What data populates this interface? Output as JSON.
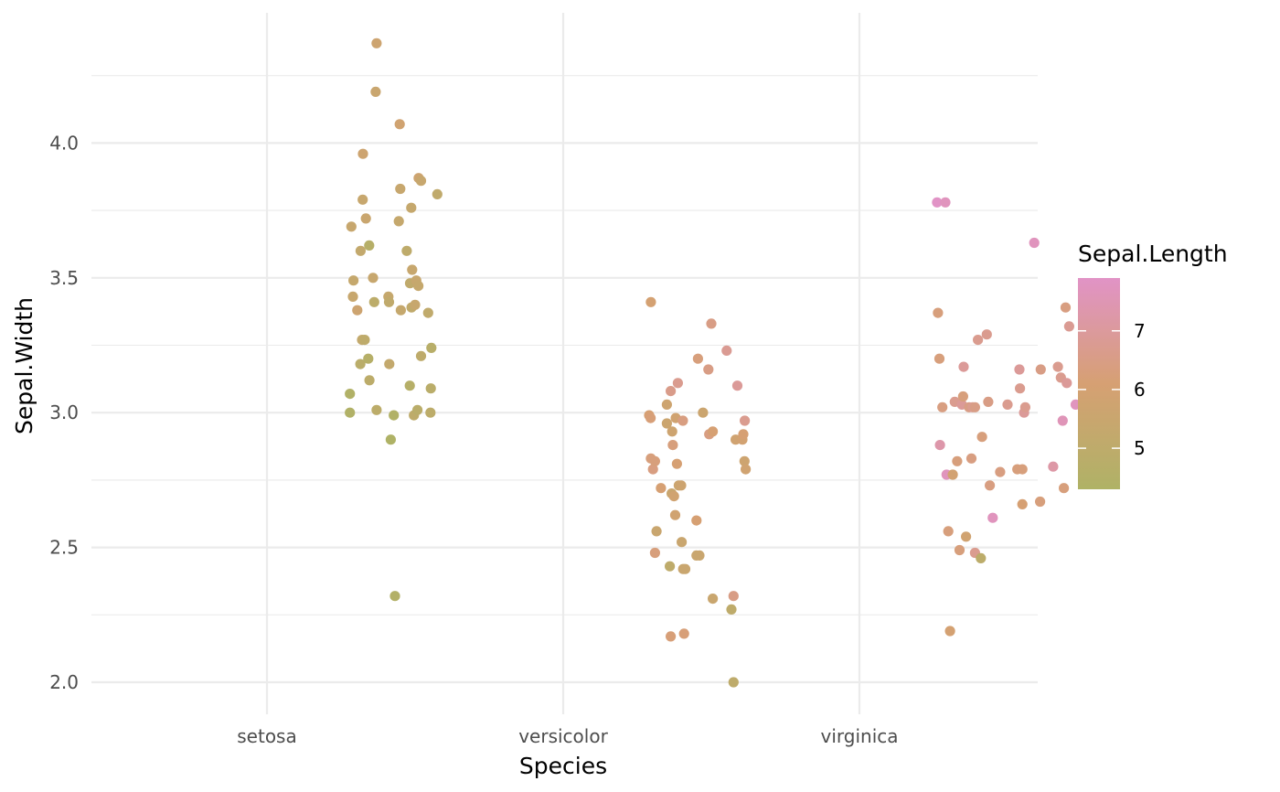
{
  "chart_data": {
    "type": "scatter",
    "subtype": "jitter",
    "title": "",
    "xlabel": "Species",
    "ylabel": "Sepal.Width",
    "categories": [
      "setosa",
      "versicolor",
      "virginica"
    ],
    "ylim": [
      1.88,
      4.48
    ],
    "yticks": [
      2.0,
      2.5,
      3.0,
      3.5,
      4.0
    ],
    "ytick_labels": [
      "2.0",
      "2.5",
      "3.0",
      "3.5",
      "4.0"
    ],
    "grid": true,
    "color_legend": {
      "title": "Sepal.Length",
      "placement": "right",
      "min": 4.3,
      "max": 7.9,
      "ticks": [
        5,
        6,
        7
      ],
      "tick_labels": [
        "5",
        "6",
        "7"
      ],
      "low_color": "#afb266",
      "mid_color": "#d6a073",
      "high_color": "#e193c6"
    },
    "series": [
      {
        "category": "setosa",
        "points": [
          {
            "x": 0.28,
            "y": 3.0,
            "c": 4.4
          },
          {
            "x": 0.28,
            "y": 3.07,
            "c": 4.4
          },
          {
            "x": 0.285,
            "y": 3.69,
            "c": 5.4
          },
          {
            "x": 0.29,
            "y": 3.43,
            "c": 5.4
          },
          {
            "x": 0.292,
            "y": 3.49,
            "c": 5.3
          },
          {
            "x": 0.305,
            "y": 3.38,
            "c": 5.7
          },
          {
            "x": 0.315,
            "y": 3.18,
            "c": 4.8
          },
          {
            "x": 0.316,
            "y": 3.6,
            "c": 5.2
          },
          {
            "x": 0.321,
            "y": 3.27,
            "c": 5.2
          },
          {
            "x": 0.323,
            "y": 3.79,
            "c": 5.4
          },
          {
            "x": 0.324,
            "y": 3.96,
            "c": 5.7
          },
          {
            "x": 0.33,
            "y": 3.27,
            "c": 5.0
          },
          {
            "x": 0.334,
            "y": 3.72,
            "c": 5.5
          },
          {
            "x": 0.342,
            "y": 3.2,
            "c": 4.6
          },
          {
            "x": 0.345,
            "y": 3.62,
            "c": 4.6
          },
          {
            "x": 0.346,
            "y": 3.12,
            "c": 4.9
          },
          {
            "x": 0.358,
            "y": 3.5,
            "c": 5.4
          },
          {
            "x": 0.362,
            "y": 3.41,
            "c": 4.9
          },
          {
            "x": 0.367,
            "y": 4.19,
            "c": 5.5
          },
          {
            "x": 0.37,
            "y": 4.37,
            "c": 5.7
          },
          {
            "x": 0.37,
            "y": 3.01,
            "c": 4.9
          },
          {
            "x": 0.41,
            "y": 3.43,
            "c": 5.3
          },
          {
            "x": 0.412,
            "y": 3.41,
            "c": 5.1
          },
          {
            "x": 0.413,
            "y": 3.18,
            "c": 5.2
          },
          {
            "x": 0.418,
            "y": 2.9,
            "c": 4.3
          },
          {
            "x": 0.428,
            "y": 2.99,
            "c": 4.4
          },
          {
            "x": 0.432,
            "y": 2.32,
            "c": 4.5
          },
          {
            "x": 0.445,
            "y": 3.71,
            "c": 5.3
          },
          {
            "x": 0.448,
            "y": 4.07,
            "c": 5.8
          },
          {
            "x": 0.45,
            "y": 3.83,
            "c": 5.4
          },
          {
            "x": 0.452,
            "y": 3.38,
            "c": 5.3
          },
          {
            "x": 0.472,
            "y": 3.6,
            "c": 5.0
          },
          {
            "x": 0.482,
            "y": 3.1,
            "c": 4.6
          },
          {
            "x": 0.483,
            "y": 3.48,
            "c": 5.1
          },
          {
            "x": 0.487,
            "y": 3.76,
            "c": 5.3
          },
          {
            "x": 0.488,
            "y": 3.39,
            "c": 5.1
          },
          {
            "x": 0.49,
            "y": 3.53,
            "c": 5.4
          },
          {
            "x": 0.496,
            "y": 2.99,
            "c": 5.0
          },
          {
            "x": 0.5,
            "y": 3.4,
            "c": 5.4
          },
          {
            "x": 0.504,
            "y": 3.49,
            "c": 5.4
          },
          {
            "x": 0.508,
            "y": 3.01,
            "c": 4.8
          },
          {
            "x": 0.511,
            "y": 3.47,
            "c": 5.3
          },
          {
            "x": 0.512,
            "y": 3.87,
            "c": 5.7
          },
          {
            "x": 0.52,
            "y": 3.86,
            "c": 5.4
          },
          {
            "x": 0.52,
            "y": 3.21,
            "c": 5.0
          },
          {
            "x": 0.544,
            "y": 3.37,
            "c": 5.1
          },
          {
            "x": 0.552,
            "y": 3.0,
            "c": 4.9
          },
          {
            "x": 0.553,
            "y": 3.09,
            "c": 4.8
          },
          {
            "x": 0.555,
            "y": 3.24,
            "c": 4.7
          },
          {
            "x": 0.575,
            "y": 3.81,
            "c": 5.1
          }
        ]
      },
      {
        "category": "versicolor",
        "points": [
          {
            "x": 1.29,
            "y": 2.99,
            "c": 6.1
          },
          {
            "x": 1.295,
            "y": 2.98,
            "c": 6.2
          },
          {
            "x": 1.296,
            "y": 3.41,
            "c": 6.0
          },
          {
            "x": 1.296,
            "y": 2.83,
            "c": 6.3
          },
          {
            "x": 1.303,
            "y": 2.79,
            "c": 6.4
          },
          {
            "x": 1.31,
            "y": 2.82,
            "c": 6.3
          },
          {
            "x": 1.31,
            "y": 2.48,
            "c": 6.3
          },
          {
            "x": 1.315,
            "y": 2.56,
            "c": 5.5
          },
          {
            "x": 1.33,
            "y": 2.72,
            "c": 6.1
          },
          {
            "x": 1.35,
            "y": 3.03,
            "c": 5.7
          },
          {
            "x": 1.35,
            "y": 2.96,
            "c": 5.6
          },
          {
            "x": 1.36,
            "y": 2.43,
            "c": 5.0
          },
          {
            "x": 1.363,
            "y": 3.08,
            "c": 6.6
          },
          {
            "x": 1.363,
            "y": 2.17,
            "c": 6.2
          },
          {
            "x": 1.366,
            "y": 2.7,
            "c": 5.5
          },
          {
            "x": 1.368,
            "y": 2.93,
            "c": 5.7
          },
          {
            "x": 1.37,
            "y": 2.88,
            "c": 6.3
          },
          {
            "x": 1.374,
            "y": 2.69,
            "c": 5.8
          },
          {
            "x": 1.378,
            "y": 2.62,
            "c": 5.8
          },
          {
            "x": 1.38,
            "y": 2.98,
            "c": 5.8
          },
          {
            "x": 1.384,
            "y": 2.81,
            "c": 6.1
          },
          {
            "x": 1.387,
            "y": 3.11,
            "c": 6.7
          },
          {
            "x": 1.39,
            "y": 2.73,
            "c": 5.6
          },
          {
            "x": 1.398,
            "y": 2.73,
            "c": 5.7
          },
          {
            "x": 1.4,
            "y": 2.52,
            "c": 5.5
          },
          {
            "x": 1.404,
            "y": 2.97,
            "c": 6.4
          },
          {
            "x": 1.405,
            "y": 2.42,
            "c": 5.5
          },
          {
            "x": 1.408,
            "y": 2.18,
            "c": 6.2
          },
          {
            "x": 1.412,
            "y": 2.42,
            "c": 5.5
          },
          {
            "x": 1.45,
            "y": 2.6,
            "c": 6.1
          },
          {
            "x": 1.45,
            "y": 2.47,
            "c": 5.5
          },
          {
            "x": 1.46,
            "y": 2.47,
            "c": 5.5
          },
          {
            "x": 1.455,
            "y": 3.2,
            "c": 6.3
          },
          {
            "x": 1.472,
            "y": 3.0,
            "c": 5.6
          },
          {
            "x": 1.49,
            "y": 3.16,
            "c": 6.5
          },
          {
            "x": 1.493,
            "y": 2.92,
            "c": 6.4
          },
          {
            "x": 1.5,
            "y": 3.33,
            "c": 6.5
          },
          {
            "x": 1.505,
            "y": 2.31,
            "c": 5.5
          },
          {
            "x": 1.505,
            "y": 2.93,
            "c": 6.1
          },
          {
            "x": 1.552,
            "y": 3.23,
            "c": 6.8
          },
          {
            "x": 1.568,
            "y": 2.27,
            "c": 5.0
          },
          {
            "x": 1.575,
            "y": 2.32,
            "c": 6.5
          },
          {
            "x": 1.575,
            "y": 2.0,
            "c": 5.0
          },
          {
            "x": 1.582,
            "y": 2.9,
            "c": 5.8
          },
          {
            "x": 1.588,
            "y": 3.1,
            "c": 6.9
          },
          {
            "x": 1.605,
            "y": 2.9,
            "c": 5.9
          },
          {
            "x": 1.608,
            "y": 2.92,
            "c": 6.1
          },
          {
            "x": 1.612,
            "y": 2.82,
            "c": 5.7
          },
          {
            "x": 1.613,
            "y": 2.97,
            "c": 6.7
          },
          {
            "x": 1.616,
            "y": 2.79,
            "c": 5.8
          }
        ]
      },
      {
        "category": "virginica",
        "points": [
          {
            "x": 2.262,
            "y": 3.78,
            "c": 7.9
          },
          {
            "x": 2.265,
            "y": 3.37,
            "c": 6.3
          },
          {
            "x": 2.27,
            "y": 3.2,
            "c": 6.3
          },
          {
            "x": 2.272,
            "y": 2.88,
            "c": 7.3
          },
          {
            "x": 2.28,
            "y": 3.02,
            "c": 6.4
          },
          {
            "x": 2.29,
            "y": 3.78,
            "c": 7.7
          },
          {
            "x": 2.294,
            "y": 2.77,
            "c": 7.7
          },
          {
            "x": 2.3,
            "y": 2.56,
            "c": 6.3
          },
          {
            "x": 2.306,
            "y": 2.19,
            "c": 6.0
          },
          {
            "x": 2.315,
            "y": 2.77,
            "c": 5.9
          },
          {
            "x": 2.322,
            "y": 3.04,
            "c": 6.7
          },
          {
            "x": 2.33,
            "y": 2.82,
            "c": 6.3
          },
          {
            "x": 2.338,
            "y": 2.49,
            "c": 6.3
          },
          {
            "x": 2.346,
            "y": 3.03,
            "c": 6.9
          },
          {
            "x": 2.35,
            "y": 3.06,
            "c": 6.3
          },
          {
            "x": 2.352,
            "y": 3.17,
            "c": 6.9
          },
          {
            "x": 2.36,
            "y": 2.54,
            "c": 5.8
          },
          {
            "x": 2.37,
            "y": 3.02,
            "c": 6.5
          },
          {
            "x": 2.378,
            "y": 2.83,
            "c": 6.4
          },
          {
            "x": 2.382,
            "y": 3.02,
            "c": 6.7
          },
          {
            "x": 2.39,
            "y": 3.02,
            "c": 6.5
          },
          {
            "x": 2.39,
            "y": 2.48,
            "c": 6.7
          },
          {
            "x": 2.4,
            "y": 3.27,
            "c": 6.7
          },
          {
            "x": 2.41,
            "y": 2.46,
            "c": 4.9
          },
          {
            "x": 2.414,
            "y": 2.91,
            "c": 6.3
          },
          {
            "x": 2.43,
            "y": 3.29,
            "c": 6.7
          },
          {
            "x": 2.435,
            "y": 3.04,
            "c": 6.5
          },
          {
            "x": 2.44,
            "y": 2.73,
            "c": 6.4
          },
          {
            "x": 2.45,
            "y": 2.61,
            "c": 7.7
          },
          {
            "x": 2.475,
            "y": 2.78,
            "c": 6.4
          },
          {
            "x": 2.5,
            "y": 3.03,
            "c": 6.7
          },
          {
            "x": 2.533,
            "y": 2.79,
            "c": 6.3
          },
          {
            "x": 2.54,
            "y": 3.16,
            "c": 6.9
          },
          {
            "x": 2.542,
            "y": 3.09,
            "c": 6.7
          },
          {
            "x": 2.55,
            "y": 2.79,
            "c": 6.3
          },
          {
            "x": 2.55,
            "y": 2.66,
            "c": 6.1
          },
          {
            "x": 2.556,
            "y": 3.0,
            "c": 6.9
          },
          {
            "x": 2.56,
            "y": 3.02,
            "c": 6.7
          },
          {
            "x": 2.59,
            "y": 3.63,
            "c": 7.7
          },
          {
            "x": 2.61,
            "y": 2.67,
            "c": 6.3
          },
          {
            "x": 2.612,
            "y": 3.16,
            "c": 6.5
          },
          {
            "x": 2.654,
            "y": 2.8,
            "c": 7.2
          },
          {
            "x": 2.67,
            "y": 3.17,
            "c": 6.7
          },
          {
            "x": 2.68,
            "y": 3.13,
            "c": 6.7
          },
          {
            "x": 2.686,
            "y": 2.97,
            "c": 7.6
          },
          {
            "x": 2.69,
            "y": 2.72,
            "c": 6.3
          },
          {
            "x": 2.696,
            "y": 3.39,
            "c": 6.4
          },
          {
            "x": 2.7,
            "y": 3.11,
            "c": 6.9
          },
          {
            "x": 2.708,
            "y": 3.32,
            "c": 6.8
          },
          {
            "x": 2.73,
            "y": 3.03,
            "c": 7.7
          }
        ]
      }
    ]
  }
}
